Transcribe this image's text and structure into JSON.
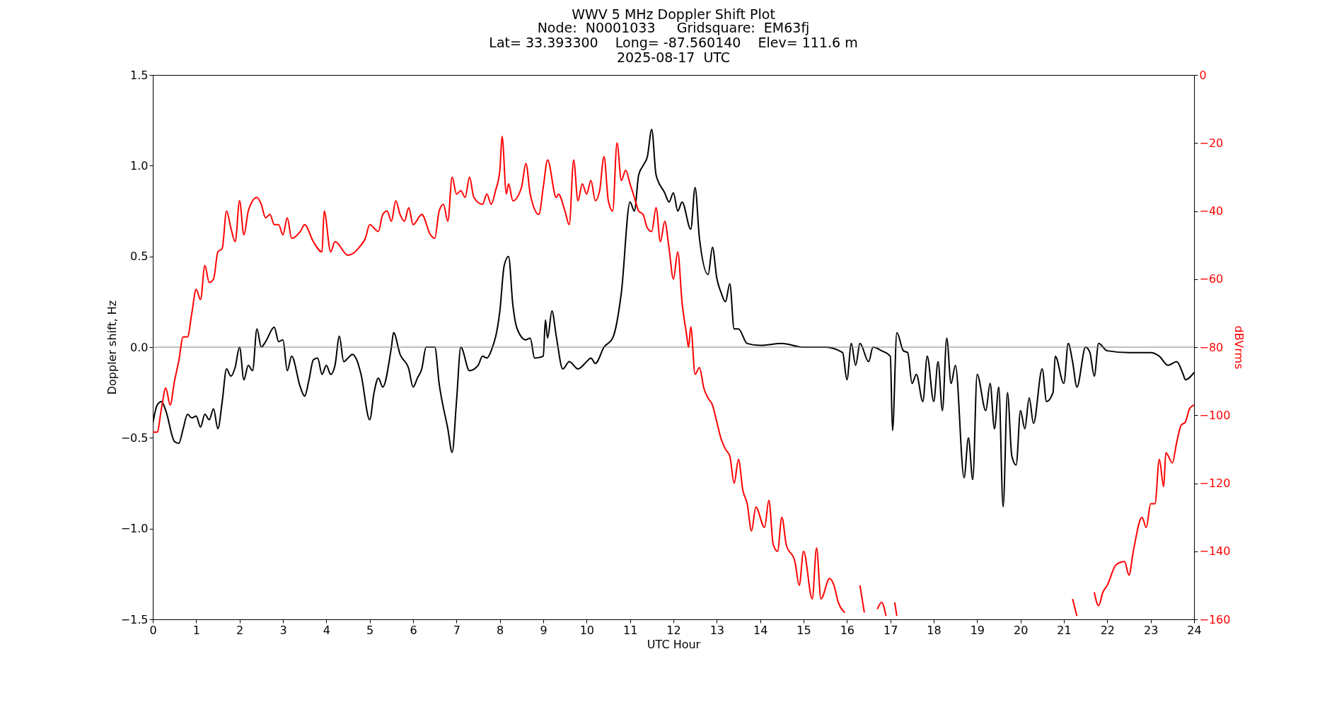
{
  "chart_data": {
    "type": "line",
    "title": "WWV 5 MHz Doppler Shift Plot",
    "subtitle": "Node:  N0001033     Gridsquare:  EM63fj\nLat= 33.393300    Long= -87.560140    Elev= 111.6 m\n2025-08-17  UTC",
    "xlabel": "UTC Hour",
    "ylabel": "Doppler shift, Hz",
    "y2label": "dBVrms",
    "grid": false,
    "marker": "none",
    "line_style": "solid",
    "xlim": [
      0,
      24
    ],
    "xticks": [
      0,
      1,
      2,
      3,
      4,
      5,
      6,
      7,
      8,
      9,
      10,
      11,
      12,
      13,
      14,
      15,
      16,
      17,
      18,
      19,
      20,
      21,
      22,
      23,
      24
    ],
    "ylim": [
      -1.5,
      1.5
    ],
    "yticks": [
      {
        "value": -1.5,
        "label": "−1.5"
      },
      {
        "value": -1.0,
        "label": "−1.0"
      },
      {
        "value": -0.5,
        "label": "−0.5"
      },
      {
        "value": 0,
        "label": "0.0"
      },
      {
        "value": 0.5,
        "label": "0.5"
      },
      {
        "value": 1.0,
        "label": "1.0"
      },
      {
        "value": 1.5,
        "label": "1.5"
      }
    ],
    "y2lim": [
      -160,
      0
    ],
    "y2ticks": [
      {
        "value": -160,
        "label": "−160"
      },
      {
        "value": -140,
        "label": "−140"
      },
      {
        "value": -120,
        "label": "−120"
      },
      {
        "value": -100,
        "label": "−100"
      },
      {
        "value": -80,
        "label": "−80"
      },
      {
        "value": -60,
        "label": "−60"
      },
      {
        "value": -40,
        "label": "−40"
      },
      {
        "value": -20,
        "label": "−20"
      },
      0
    ],
    "ref_lines": [
      {
        "axis": "y",
        "value": 0,
        "color": "#808080"
      }
    ],
    "series": [
      {
        "color": "#000000",
        "x": [
          0,
          0.1,
          0.2,
          0.3,
          0.5,
          0.6,
          0.7,
          0.8,
          0.9,
          1.0,
          1.1,
          1.2,
          1.3,
          1.4,
          1.5,
          1.6,
          1.7,
          1.8,
          1.9,
          2.0,
          2.1,
          2.2,
          2.3,
          2.4,
          2.5,
          2.6,
          2.8,
          2.9,
          3.0,
          3.1,
          3.2,
          3.4,
          3.5,
          3.6,
          3.7,
          3.8,
          3.9,
          4.0,
          4.1,
          4.2,
          4.3,
          4.4,
          4.5,
          4.6,
          4.7,
          4.8,
          5.0,
          5.1,
          5.2,
          5.3,
          5.5,
          5.55,
          5.7,
          5.9,
          6.0,
          6.1,
          6.2,
          6.3,
          6.5,
          6.6,
          6.8,
          6.9,
          7.0,
          7.1,
          7.3,
          7.5,
          7.6,
          7.7,
          7.8,
          8.0,
          8.1,
          8.2,
          8.3,
          8.4,
          8.6,
          8.7,
          8.8,
          9.0,
          9.05,
          9.1,
          9.2,
          9.3,
          9.45,
          9.6,
          9.8,
          10.0,
          10.1,
          10.2,
          10.4,
          10.6,
          10.8,
          11.0,
          11.1,
          11.2,
          11.3,
          11.4,
          11.5,
          11.6,
          11.8,
          11.9,
          12.0,
          12.1,
          12.2,
          12.4,
          12.5,
          12.6,
          12.8,
          12.9,
          13.0,
          13.1,
          13.2,
          13.3,
          13.4,
          13.5,
          13.7,
          14.0,
          14.5,
          15.0,
          15.5,
          15.9,
          16.0,
          16.1,
          16.2,
          16.3,
          16.5,
          16.6,
          16.8,
          17.0,
          17.05,
          17.15,
          17.3,
          17.4,
          17.5,
          17.6,
          17.75,
          17.85,
          18.0,
          18.1,
          18.2,
          18.3,
          18.4,
          18.5,
          18.7,
          18.8,
          18.9,
          19.0,
          19.2,
          19.3,
          19.4,
          19.5,
          19.6,
          19.7,
          19.8,
          19.9,
          20.0,
          20.1,
          20.2,
          20.3,
          20.5,
          20.6,
          20.75,
          20.8,
          21.0,
          21.1,
          21.2,
          21.3,
          21.5,
          21.6,
          21.7,
          21.8,
          22.0,
          22.5,
          23.0,
          23.2,
          23.4,
          23.6,
          23.75,
          23.8,
          24.0
        ],
        "values": [
          -0.42,
          -0.32,
          -0.3,
          -0.35,
          -0.52,
          -0.53,
          -0.45,
          -0.37,
          -0.39,
          -0.38,
          -0.44,
          -0.37,
          -0.4,
          -0.34,
          -0.45,
          -0.3,
          -0.12,
          -0.16,
          -0.11,
          0.0,
          -0.18,
          -0.1,
          -0.13,
          0.1,
          0.0,
          0.03,
          0.11,
          0.03,
          0.04,
          -0.13,
          -0.05,
          -0.22,
          -0.27,
          -0.18,
          -0.07,
          -0.06,
          -0.15,
          -0.1,
          -0.15,
          -0.1,
          0.06,
          -0.08,
          -0.06,
          -0.04,
          -0.07,
          -0.15,
          -0.4,
          -0.25,
          -0.17,
          -0.22,
          0.0,
          0.08,
          -0.04,
          -0.12,
          -0.22,
          -0.17,
          -0.12,
          0.0,
          0.0,
          -0.2,
          -0.45,
          -0.58,
          -0.3,
          0.0,
          -0.13,
          -0.1,
          -0.05,
          -0.06,
          -0.02,
          0.2,
          0.45,
          0.5,
          0.23,
          0.1,
          0.04,
          0.05,
          -0.06,
          -0.05,
          0.15,
          0.05,
          0.2,
          0.06,
          -0.12,
          -0.08,
          -0.12,
          -0.08,
          -0.06,
          -0.09,
          0.0,
          0.05,
          0.3,
          0.8,
          0.75,
          0.95,
          1.0,
          1.05,
          1.2,
          0.95,
          0.85,
          0.8,
          0.85,
          0.75,
          0.8,
          0.65,
          0.88,
          0.6,
          0.4,
          0.55,
          0.38,
          0.3,
          0.25,
          0.35,
          0.1,
          0.1,
          0.02,
          0.01,
          0.02,
          0.0,
          0.0,
          -0.03,
          -0.18,
          0.02,
          -0.1,
          0.02,
          -0.08,
          0.0,
          -0.02,
          -0.05,
          -0.46,
          0.08,
          -0.02,
          -0.03,
          -0.2,
          -0.15,
          -0.3,
          -0.05,
          -0.3,
          -0.08,
          -0.35,
          0.05,
          -0.2,
          -0.1,
          -0.72,
          -0.5,
          -0.73,
          -0.15,
          -0.35,
          -0.2,
          -0.45,
          -0.22,
          -0.88,
          -0.25,
          -0.6,
          -0.65,
          -0.35,
          -0.45,
          -0.28,
          -0.42,
          -0.12,
          -0.3,
          -0.25,
          -0.05,
          -0.2,
          0.02,
          -0.08,
          -0.22,
          0.0,
          -0.03,
          -0.16,
          0.02,
          -0.02,
          -0.03,
          -0.03,
          -0.05,
          -0.1,
          -0.08,
          -0.15,
          -0.18,
          -0.14
        ]
      },
      {
        "color": "#ff0000",
        "axis": "y2",
        "x": [
          0,
          0.1,
          0.2,
          0.3,
          0.4,
          0.5,
          0.6,
          0.7,
          0.8,
          0.9,
          1.0,
          1.1,
          1.2,
          1.3,
          1.4,
          1.5,
          1.6,
          1.7,
          1.8,
          1.9,
          2.0,
          2.1,
          2.2,
          2.3,
          2.4,
          2.5,
          2.6,
          2.7,
          2.8,
          2.9,
          3.0,
          3.1,
          3.2,
          3.4,
          3.5,
          3.7,
          3.9,
          3.95,
          4.1,
          4.2,
          4.5,
          4.8,
          4.9,
          5.0,
          5.2,
          5.3,
          5.4,
          5.5,
          5.6,
          5.7,
          5.8,
          5.9,
          6.0,
          6.2,
          6.4,
          6.5,
          6.6,
          6.7,
          6.8,
          6.9,
          7.0,
          7.1,
          7.2,
          7.3,
          7.4,
          7.6,
          7.7,
          7.8,
          7.9,
          8.0,
          8.05,
          8.15,
          8.2,
          8.3,
          8.5,
          8.6,
          8.7,
          8.9,
          9.0,
          9.1,
          9.3,
          9.35,
          9.5,
          9.6,
          9.7,
          9.8,
          9.9,
          10.0,
          10.1,
          10.2,
          10.3,
          10.4,
          10.5,
          10.6,
          10.7,
          10.8,
          10.9,
          11.0,
          11.1,
          11.2,
          11.3,
          11.4,
          11.5,
          11.6,
          11.7,
          11.8,
          11.9,
          12.0,
          12.1,
          12.2,
          12.3,
          12.35,
          12.4,
          12.5,
          12.6,
          12.7,
          12.8,
          12.9,
          13.0,
          13.1,
          13.2,
          13.3,
          13.4,
          13.5,
          13.6,
          13.7,
          13.8,
          13.9,
          14.1,
          14.2,
          14.3,
          14.4,
          14.5,
          14.6,
          14.8,
          14.9,
          15.0,
          15.2,
          15.3,
          15.4,
          15.6,
          15.7,
          15.8,
          15.95,
          16.2,
          16.3,
          16.4,
          16.5,
          16.7,
          16.8,
          16.9,
          17.05,
          17.1,
          17.15,
          17.3,
          21.1,
          21.2,
          21.3,
          21.6,
          21.7,
          21.8,
          21.9,
          22.0,
          22.2,
          22.4,
          22.5,
          22.6,
          22.8,
          22.9,
          23.0,
          23.1,
          23.2,
          23.3,
          23.35,
          23.5,
          23.6,
          23.7,
          23.8,
          23.9,
          24.0
        ],
        "values": [
          -105,
          -105,
          -98,
          -92,
          -97,
          -90,
          -84,
          -77,
          -77,
          -70,
          -63,
          -66,
          -56,
          -61,
          -60,
          -52,
          -51,
          -40,
          -45,
          -49,
          -37,
          -47,
          -40,
          -37,
          -36,
          -38,
          -42,
          -41,
          -44,
          -44,
          -47,
          -42,
          -48,
          -46,
          -44,
          -49,
          -52,
          -40,
          -52,
          -49,
          -53,
          -50,
          -48,
          -44,
          -46,
          -41,
          -40,
          -43,
          -37,
          -41,
          -43,
          -39,
          -44,
          -41,
          -47,
          -48,
          -40,
          -38,
          -43,
          -30,
          -35,
          -34,
          -36,
          -30,
          -36,
          -38,
          -35,
          -38,
          -34,
          -28,
          -18,
          -35,
          -32,
          -37,
          -33,
          -26,
          -35,
          -41,
          -33,
          -25,
          -36,
          -35,
          -40,
          -44,
          -25,
          -37,
          -32,
          -35,
          -31,
          -37,
          -34,
          -24,
          -37,
          -40,
          -20,
          -31,
          -28,
          -32,
          -36,
          -40,
          -41,
          -45,
          -46,
          -39,
          -49,
          -43,
          -51,
          -60,
          -52,
          -67,
          -76,
          -80,
          -74,
          -88,
          -86,
          -92,
          -95,
          -97,
          -102,
          -107,
          -110,
          -112,
          -120,
          -113,
          -122,
          -126,
          -134,
          -127,
          -133,
          -125,
          -138,
          -140,
          -130,
          -138,
          -143,
          -150,
          -140,
          -154,
          -139,
          -154,
          -148,
          -150,
          -155,
          -158,
          null,
          -150,
          -158,
          null,
          -157,
          -155,
          -159,
          null,
          -155,
          -159,
          null,
          null,
          -154,
          -159,
          null,
          -152,
          -156,
          -152,
          -150,
          -144,
          -143,
          -147,
          -140,
          -130,
          -133,
          -126,
          -126,
          -113,
          -121,
          -111,
          -114,
          -108,
          -103,
          -102,
          -98,
          -97
        ]
      }
    ]
  }
}
